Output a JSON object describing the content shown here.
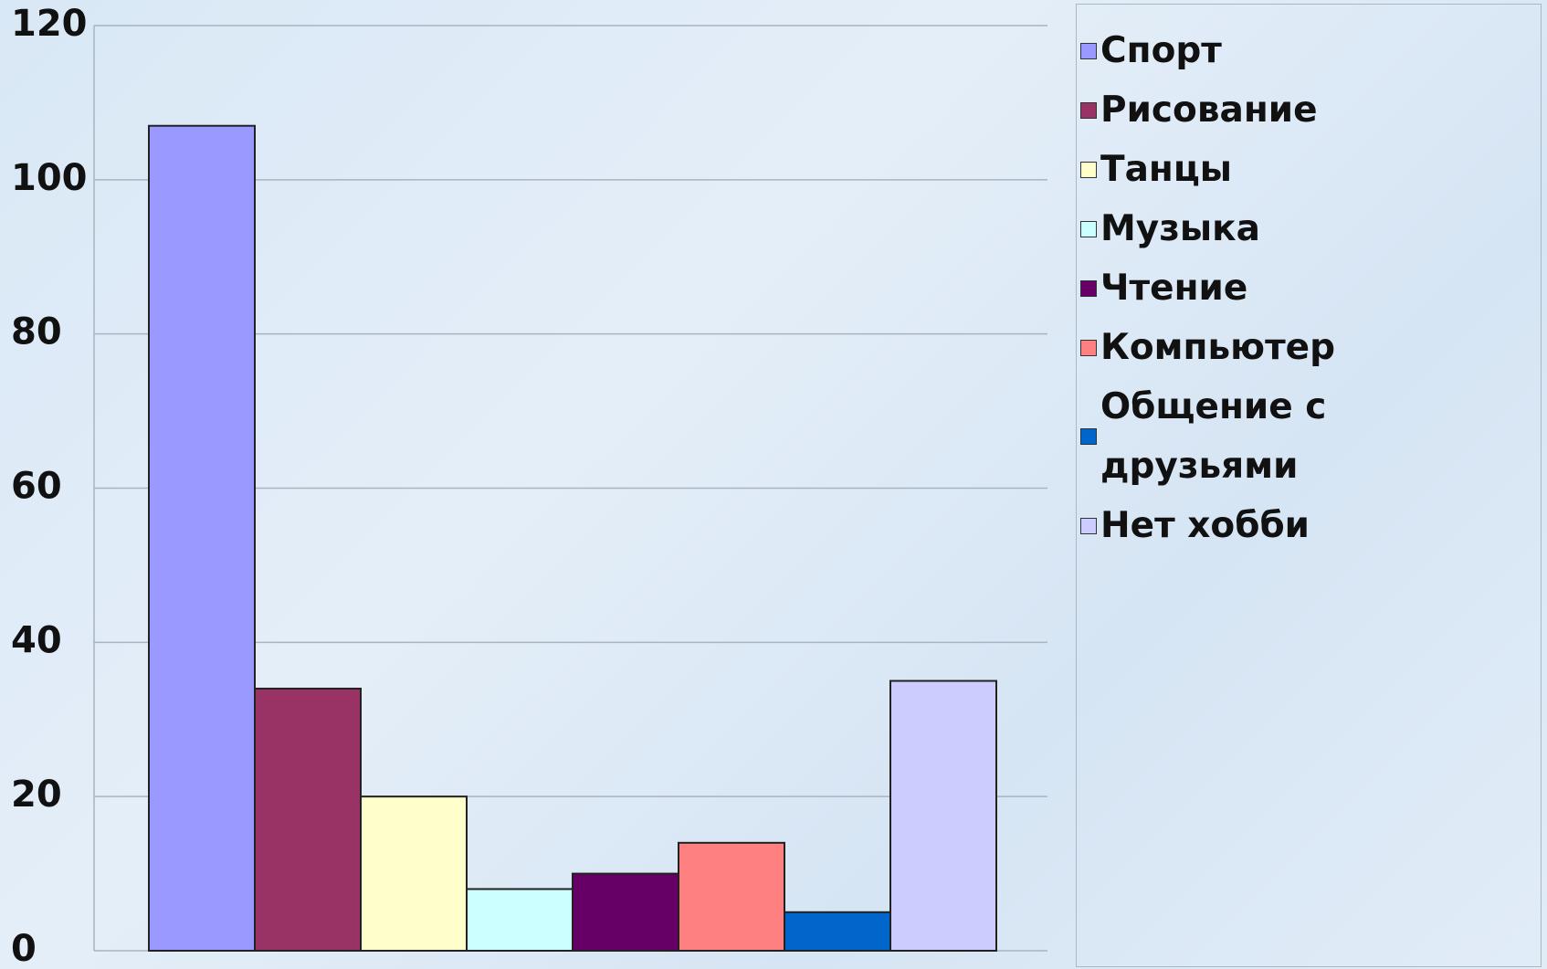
{
  "chart_data": {
    "type": "bar",
    "categories": [
      null
    ],
    "series": [
      {
        "name": "Спорт",
        "color": "#9999ff",
        "values": [
          107
        ]
      },
      {
        "name": "Рисование",
        "color": "#993366",
        "values": [
          34
        ]
      },
      {
        "name": "Танцы",
        "color": "#ffffcc",
        "values": [
          20
        ]
      },
      {
        "name": "Музыка",
        "color": "#ccffff",
        "values": [
          8
        ]
      },
      {
        "name": "Чтение",
        "color": "#660066",
        "values": [
          10
        ]
      },
      {
        "name": "Компьютер",
        "color": "#ff8080",
        "values": [
          14
        ]
      },
      {
        "name": "Общение с друзьями",
        "color": "#0066cc",
        "values": [
          5
        ]
      },
      {
        "name": "Нет хобби",
        "color": "#ccccff",
        "values": [
          35
        ]
      }
    ],
    "ylim": [
      0,
      120
    ],
    "yticks": [
      0,
      20,
      40,
      60,
      80,
      100,
      120
    ],
    "grid": true,
    "legend": "right"
  }
}
